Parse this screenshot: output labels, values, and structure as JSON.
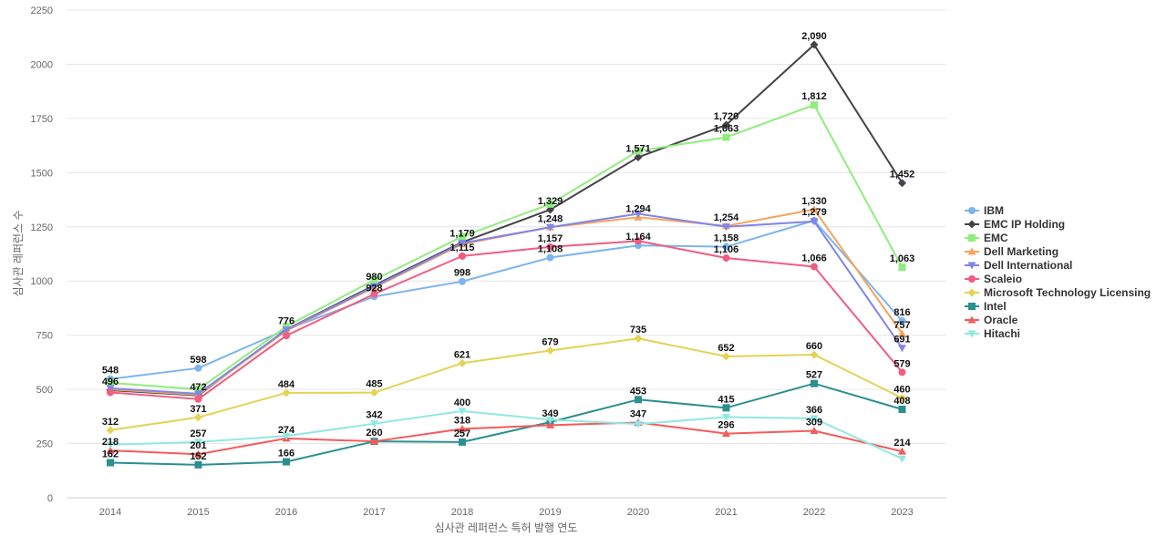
{
  "chart_data": {
    "type": "line",
    "xlabel": "심사관 레퍼런스 특허 발행 연도",
    "ylabel": "심사관 레퍼런스 수",
    "x": [
      "2014",
      "2015",
      "2016",
      "2017",
      "2018",
      "2019",
      "2020",
      "2021",
      "2022",
      "2023"
    ],
    "ylim": [
      0,
      2250
    ],
    "yticks": [
      0,
      250,
      500,
      750,
      1000,
      1250,
      1500,
      1750,
      2000,
      2250
    ],
    "grid": true,
    "legend_position": "right",
    "series": [
      {
        "name": "IBM",
        "color": "#7cb5ec",
        "marker": "circle",
        "values": [
          548,
          598,
          776,
          928,
          998,
          1108,
          1164,
          1158,
          1279,
          816
        ]
      },
      {
        "name": "EMC IP Holding",
        "color": "#434348",
        "marker": "diamond",
        "values": [
          496,
          472,
          776,
          980,
          1179,
          1329,
          1571,
          1720,
          2090,
          1452
        ]
      },
      {
        "name": "EMC",
        "color": "#90ed7d",
        "marker": "square",
        "values": [
          530,
          500,
          790,
          1005,
          1205,
          1355,
          1600,
          1663,
          1812,
          1063
        ]
      },
      {
        "name": "Dell Marketing",
        "color": "#f7a35c",
        "marker": "triangle",
        "values": [
          500,
          475,
          770,
          970,
          1170,
          1248,
          1294,
          1254,
          1330,
          757
        ]
      },
      {
        "name": "Dell International",
        "color": "#8085e9",
        "marker": "triangle-down",
        "values": [
          505,
          480,
          775,
          975,
          1175,
          1248,
          1310,
          1250,
          1275,
          691
        ]
      },
      {
        "name": "Scaleio",
        "color": "#f15c80",
        "marker": "circle",
        "values": [
          486,
          455,
          748,
          940,
          1115,
          1157,
          1185,
          1106,
          1066,
          579
        ]
      },
      {
        "name": "Microsoft Technology Licensing",
        "color": "#e4d354",
        "marker": "diamond",
        "values": [
          312,
          371,
          484,
          485,
          621,
          679,
          735,
          652,
          660,
          460
        ]
      },
      {
        "name": "Intel",
        "color": "#2b908f",
        "marker": "square",
        "values": [
          162,
          152,
          166,
          260,
          257,
          349,
          453,
          415,
          527,
          408
        ]
      },
      {
        "name": "Oracle",
        "color": "#f45b5b",
        "marker": "triangle",
        "values": [
          218,
          201,
          274,
          260,
          318,
          335,
          347,
          296,
          309,
          214
        ]
      },
      {
        "name": "Hitachi",
        "color": "#91e8e1",
        "marker": "triangle-down",
        "values": [
          245,
          257,
          285,
          342,
          400,
          360,
          340,
          372,
          366,
          180
        ]
      }
    ],
    "data_labels": [
      {
        "x": "2014",
        "text": "548",
        "y": 548
      },
      {
        "x": "2014",
        "text": "496",
        "y": 496
      },
      {
        "x": "2014",
        "text": "312",
        "y": 312
      },
      {
        "x": "2014",
        "text": "218",
        "y": 218
      },
      {
        "x": "2014",
        "text": "162",
        "y": 162
      },
      {
        "x": "2015",
        "text": "598",
        "y": 598
      },
      {
        "x": "2015",
        "text": "472",
        "y": 472
      },
      {
        "x": "2015",
        "text": "371",
        "y": 371
      },
      {
        "x": "2015",
        "text": "257",
        "y": 257
      },
      {
        "x": "2015",
        "text": "201",
        "y": 201
      },
      {
        "x": "2015",
        "text": "152",
        "y": 152
      },
      {
        "x": "2016",
        "text": "776",
        "y": 776
      },
      {
        "x": "2016",
        "text": "484",
        "y": 484
      },
      {
        "x": "2016",
        "text": "274",
        "y": 274
      },
      {
        "x": "2016",
        "text": "166",
        "y": 166
      },
      {
        "x": "2017",
        "text": "980",
        "y": 980
      },
      {
        "x": "2017",
        "text": "928",
        "y": 928
      },
      {
        "x": "2017",
        "text": "485",
        "y": 485
      },
      {
        "x": "2017",
        "text": "342",
        "y": 342
      },
      {
        "x": "2017",
        "text": "260",
        "y": 260
      },
      {
        "x": "2018",
        "text": "1,179",
        "y": 1179
      },
      {
        "x": "2018",
        "text": "1,115",
        "y": 1115
      },
      {
        "x": "2018",
        "text": "998",
        "y": 998
      },
      {
        "x": "2018",
        "text": "621",
        "y": 621
      },
      {
        "x": "2018",
        "text": "400",
        "y": 400
      },
      {
        "x": "2018",
        "text": "318",
        "y": 318
      },
      {
        "x": "2018",
        "text": "257",
        "y": 257
      },
      {
        "x": "2019",
        "text": "1,329",
        "y": 1329
      },
      {
        "x": "2019",
        "text": "1,248",
        "y": 1248
      },
      {
        "x": "2019",
        "text": "1,157",
        "y": 1157
      },
      {
        "x": "2019",
        "text": "1,108",
        "y": 1108
      },
      {
        "x": "2019",
        "text": "679",
        "y": 679
      },
      {
        "x": "2019",
        "text": "349",
        "y": 349
      },
      {
        "x": "2020",
        "text": "1,571",
        "y": 1571
      },
      {
        "x": "2020",
        "text": "1,294",
        "y": 1294
      },
      {
        "x": "2020",
        "text": "1,164",
        "y": 1164
      },
      {
        "x": "2020",
        "text": "735",
        "y": 735
      },
      {
        "x": "2020",
        "text": "453",
        "y": 453
      },
      {
        "x": "2020",
        "text": "347",
        "y": 347
      },
      {
        "x": "2021",
        "text": "1,720",
        "y": 1720
      },
      {
        "x": "2021",
        "text": "1,663",
        "y": 1663
      },
      {
        "x": "2021",
        "text": "1,254",
        "y": 1254
      },
      {
        "x": "2021",
        "text": "1,158",
        "y": 1158
      },
      {
        "x": "2021",
        "text": "1,106",
        "y": 1106
      },
      {
        "x": "2021",
        "text": "652",
        "y": 652
      },
      {
        "x": "2021",
        "text": "415",
        "y": 415
      },
      {
        "x": "2021",
        "text": "296",
        "y": 296
      },
      {
        "x": "2022",
        "text": "2,090",
        "y": 2090
      },
      {
        "x": "2022",
        "text": "1,812",
        "y": 1812
      },
      {
        "x": "2022",
        "text": "1,330",
        "y": 1330
      },
      {
        "x": "2022",
        "text": "1,279",
        "y": 1279
      },
      {
        "x": "2022",
        "text": "1,066",
        "y": 1066
      },
      {
        "x": "2022",
        "text": "660",
        "y": 660
      },
      {
        "x": "2022",
        "text": "527",
        "y": 527
      },
      {
        "x": "2022",
        "text": "366",
        "y": 366
      },
      {
        "x": "2022",
        "text": "309",
        "y": 309
      },
      {
        "x": "2023",
        "text": "1,452",
        "y": 1452
      },
      {
        "x": "2023",
        "text": "1,063",
        "y": 1063
      },
      {
        "x": "2023",
        "text": "816",
        "y": 816
      },
      {
        "x": "2023",
        "text": "757",
        "y": 757
      },
      {
        "x": "2023",
        "text": "691",
        "y": 691
      },
      {
        "x": "2023",
        "text": "579",
        "y": 579
      },
      {
        "x": "2023",
        "text": "460",
        "y": 460
      },
      {
        "x": "2023",
        "text": "408",
        "y": 408
      },
      {
        "x": "2023",
        "text": "214",
        "y": 214
      }
    ]
  }
}
